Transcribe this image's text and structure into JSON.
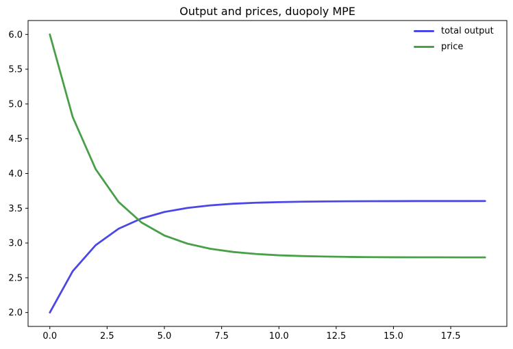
{
  "figure": {
    "background": "#ffffff",
    "axis_color": "#000000"
  },
  "chart_data": {
    "type": "line",
    "title": "Output and prices, duopoly MPE",
    "xlabel": "",
    "ylabel": "",
    "grid": false,
    "xlim": [
      -0.95,
      19.95
    ],
    "ylim": [
      1.8,
      6.2
    ],
    "x_ticks": [
      0.0,
      2.5,
      5.0,
      7.5,
      10.0,
      12.5,
      15.0,
      17.5
    ],
    "x_tick_labels": [
      "0.0",
      "2.5",
      "5.0",
      "7.5",
      "10.0",
      "12.5",
      "15.0",
      "17.5"
    ],
    "y_ticks": [
      2.0,
      2.5,
      3.0,
      3.5,
      4.0,
      4.5,
      5.0,
      5.5,
      6.0
    ],
    "y_tick_labels": [
      "2.0",
      "2.5",
      "3.0",
      "3.5",
      "4.0",
      "4.5",
      "5.0",
      "5.5",
      "6.0"
    ],
    "x": [
      0,
      1,
      2,
      3,
      4,
      5,
      6,
      7,
      8,
      9,
      10,
      11,
      12,
      13,
      14,
      15,
      16,
      17,
      18,
      19
    ],
    "series": [
      {
        "name": "total output",
        "color": "#4b46e6",
        "line_width": 2.8,
        "values": [
          2.0,
          2.595,
          2.969,
          3.205,
          3.353,
          3.446,
          3.504,
          3.541,
          3.565,
          3.579,
          3.588,
          3.594,
          3.598,
          3.6,
          3.601,
          3.602,
          3.603,
          3.603,
          3.603,
          3.604
        ]
      },
      {
        "name": "price",
        "color": "#47a047",
        "line_width": 2.8,
        "values": [
          6.0,
          4.81,
          4.062,
          3.591,
          3.295,
          3.108,
          2.991,
          2.917,
          2.871,
          2.842,
          2.823,
          2.812,
          2.805,
          2.8,
          2.797,
          2.795,
          2.794,
          2.794,
          2.793,
          2.793
        ]
      }
    ],
    "legend": {
      "position": "upper right",
      "frame": false,
      "entries": [
        "total output",
        "price"
      ]
    }
  }
}
